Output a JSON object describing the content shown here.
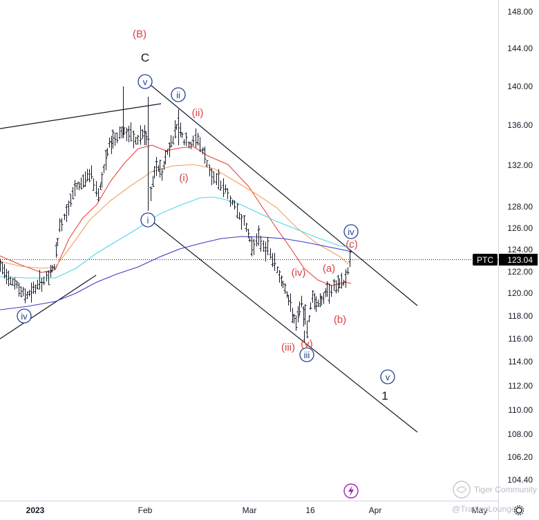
{
  "chart_data": {
    "type": "bar",
    "ticker": "PTC",
    "last_price": "123.04",
    "y_ticks": [
      "148.00",
      "144.00",
      "140.00",
      "136.00",
      "132.00",
      "128.00",
      "126.00",
      "124.00",
      "122.00",
      "120.00",
      "118.00",
      "116.00",
      "114.00",
      "112.00",
      "110.00",
      "108.00",
      "106.20",
      "104.40"
    ],
    "x_ticks": [
      "2023",
      "Feb",
      "Mar",
      "16",
      "Apr",
      "May"
    ],
    "wave_labels": [
      {
        "text": "(B)",
        "style": "red"
      },
      {
        "text": "C",
        "style": "black"
      },
      {
        "text": "v",
        "style": "blue"
      },
      {
        "text": "ii",
        "style": "blue"
      },
      {
        "text": "(ii)",
        "style": "red"
      },
      {
        "text": "(i)",
        "style": "red"
      },
      {
        "text": "i",
        "style": "blue"
      },
      {
        "text": "iv",
        "style": "blue"
      },
      {
        "text": "(iv)",
        "style": "red"
      },
      {
        "text": "(iii)",
        "style": "red"
      },
      {
        "text": "(v)",
        "style": "red"
      },
      {
        "text": "iii",
        "style": "blue"
      },
      {
        "text": "iv",
        "style": "blue"
      },
      {
        "text": "(c)",
        "style": "red"
      },
      {
        "text": "(a)",
        "style": "red"
      },
      {
        "text": "(b)",
        "style": "red"
      },
      {
        "text": "v",
        "style": "blue"
      },
      {
        "text": "1",
        "style": "black"
      }
    ],
    "series": [
      {
        "name": "",
        "color": "#e8433f"
      },
      {
        "name": "",
        "color": "#f0a058"
      },
      {
        "name": "",
        "color": "#4fd6e6"
      },
      {
        "name": "",
        "color": "#3a38c8"
      }
    ],
    "watermark_line1": "Tiger Community",
    "watermark_line2": "@TradingLounge"
  }
}
